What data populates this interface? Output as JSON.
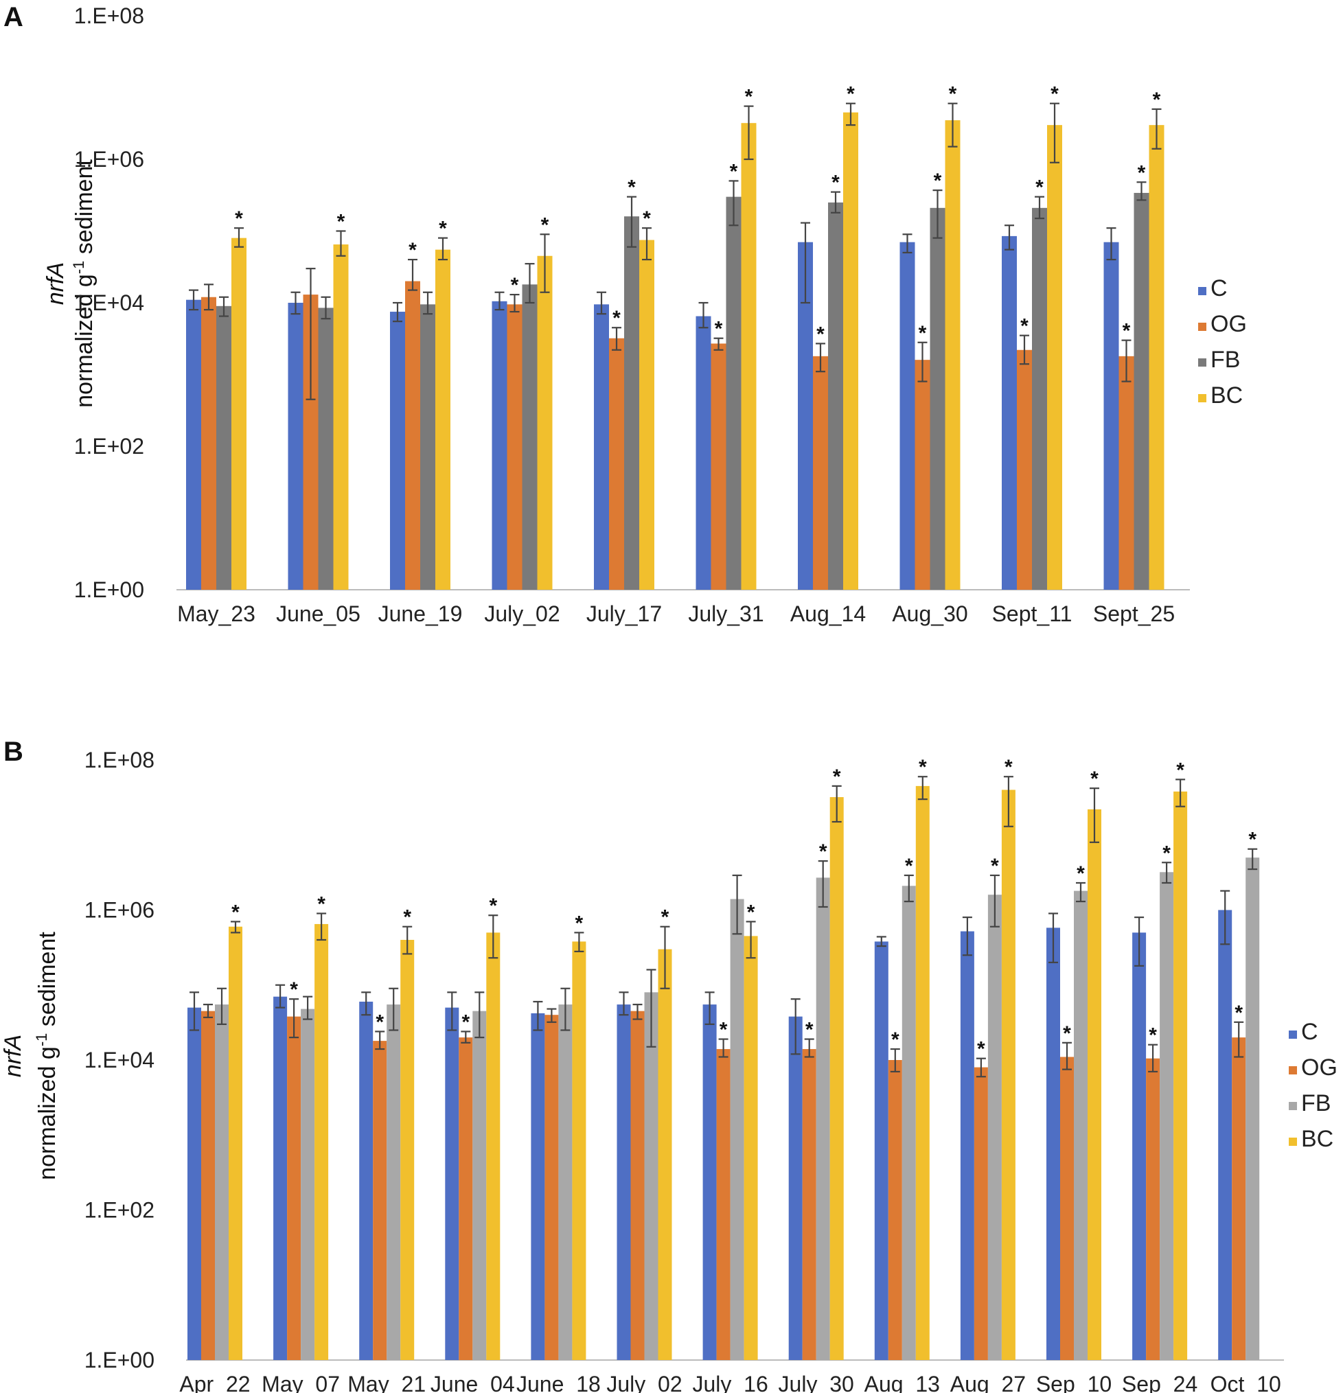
{
  "colors": {
    "C": "#4f6fc4",
    "OG": "#dd7a33",
    "FB_A": "#7a7a7a",
    "FB_B": "#a8a8a8",
    "BC": "#f1bf2d",
    "err": "#444444",
    "axis": "#bbbbbb"
  },
  "series_names": [
    "C",
    "OG",
    "FB",
    "BC"
  ],
  "chart_data": [
    {
      "type": "bar",
      "panel": "A",
      "scale": "log10",
      "ylim": [
        1,
        100000000
      ],
      "yticks": [
        "1.E+00",
        "1.E+02",
        "1.E+04",
        "1.E+06",
        "1.E+08"
      ],
      "ylabel_italic": "nrfA",
      "ylabel_pre": "normalized g",
      "ylabel_sup": "-1",
      "ylabel_post": " sediment",
      "categories": [
        "May_23",
        "June_05",
        "June_19",
        "July_02",
        "July_17",
        "July_31",
        "Aug_14",
        "Aug_30",
        "Sept_11",
        "Sept_25"
      ],
      "series": [
        {
          "name": "C",
          "values": [
            11000,
            10000,
            7500,
            10500,
            9500,
            6500,
            70000,
            70000,
            85000,
            70000
          ],
          "err_low": [
            8000,
            7000,
            5500,
            8000,
            7000,
            4500,
            10000,
            50000,
            55000,
            40000
          ],
          "err_high": [
            15000,
            14000,
            10000,
            14000,
            14000,
            10000,
            130000,
            90000,
            120000,
            110000
          ],
          "sig": [
            false,
            false,
            false,
            false,
            false,
            false,
            false,
            false,
            false,
            false
          ]
        },
        {
          "name": "OG",
          "values": [
            12000,
            13000,
            20000,
            9500,
            3200,
            2700,
            1800,
            1600,
            2200,
            1800
          ],
          "err_low": [
            8000,
            450,
            15000,
            7500,
            2200,
            2200,
            1100,
            800,
            1400,
            800
          ],
          "err_high": [
            18000,
            30000,
            40000,
            13000,
            4500,
            3200,
            2700,
            2800,
            3500,
            3000
          ],
          "sig": [
            false,
            false,
            true,
            true,
            true,
            true,
            true,
            true,
            true,
            true
          ]
        },
        {
          "name": "FB",
          "values": [
            9000,
            8500,
            9500,
            18000,
            160000,
            300000,
            250000,
            210000,
            210000,
            340000
          ],
          "err_low": [
            6500,
            6000,
            7000,
            10000,
            60000,
            120000,
            180000,
            80000,
            150000,
            270000
          ],
          "err_high": [
            12000,
            12000,
            14000,
            35000,
            300000,
            500000,
            350000,
            370000,
            300000,
            480000
          ],
          "sig": [
            false,
            false,
            false,
            false,
            true,
            true,
            true,
            true,
            true,
            true
          ]
        },
        {
          "name": "BC",
          "values": [
            80000,
            65000,
            55000,
            45000,
            75000,
            3200000,
            4500000,
            3500000,
            3000000,
            3000000
          ],
          "err_low": [
            60000,
            45000,
            40000,
            14000,
            40000,
            1000000,
            3000000,
            1500000,
            900000,
            1400000
          ],
          "err_high": [
            110000,
            100000,
            80000,
            90000,
            110000,
            5500000,
            6000000,
            6000000,
            6000000,
            5000000
          ],
          "sig": [
            true,
            true,
            true,
            true,
            true,
            true,
            true,
            true,
            true,
            true
          ]
        }
      ],
      "legend": [
        "C",
        "OG",
        "FB",
        "BC"
      ],
      "legend_position": "right"
    },
    {
      "type": "bar",
      "panel": "B",
      "scale": "log10",
      "ylim": [
        1,
        100000000
      ],
      "yticks": [
        "1.E+00",
        "1.E+02",
        "1.E+04",
        "1.E+06",
        "1.E+08"
      ],
      "ylabel_italic": "nrfA",
      "ylabel_pre": "normalized g",
      "ylabel_sup": "-1",
      "ylabel_post": " sediment",
      "categories": [
        "Apr_22",
        "May_07",
        "May_21",
        "June_04",
        "June_18",
        "July_02",
        "July_16",
        "July_30",
        "Aug_13",
        "Aug_27",
        "Sep_10",
        "Sep_24",
        "Oct_10"
      ],
      "series": [
        {
          "name": "C",
          "values": [
            50000,
            70000,
            60000,
            50000,
            42000,
            55000,
            55000,
            38000,
            380000,
            520000,
            580000,
            500000,
            1000000
          ],
          "err_low": [
            25000,
            50000,
            40000,
            25000,
            25000,
            40000,
            30000,
            12000,
            330000,
            250000,
            200000,
            180000,
            350000
          ],
          "err_high": [
            80000,
            100000,
            80000,
            80000,
            60000,
            80000,
            80000,
            65000,
            440000,
            800000,
            900000,
            800000,
            1800000
          ],
          "sig": [
            false,
            false,
            false,
            false,
            false,
            false,
            false,
            false,
            false,
            false,
            false,
            false,
            false
          ]
        },
        {
          "name": "OG",
          "values": [
            45000,
            38000,
            18000,
            20000,
            40000,
            45000,
            14000,
            14000,
            10000,
            8000,
            11000,
            10500,
            20000
          ],
          "err_low": [
            37000,
            20000,
            14000,
            17000,
            32000,
            35000,
            11000,
            11000,
            7000,
            6000,
            7500,
            7000,
            11000
          ],
          "err_high": [
            55000,
            65000,
            24000,
            24000,
            48000,
            55000,
            19000,
            19000,
            14000,
            10500,
            17000,
            16000,
            32000
          ],
          "sig": [
            false,
            true,
            true,
            true,
            false,
            false,
            true,
            true,
            true,
            true,
            true,
            true,
            true
          ]
        },
        {
          "name": "FB",
          "values": [
            55000,
            48000,
            55000,
            45000,
            55000,
            80000,
            1400000,
            2700000,
            2100000,
            1600000,
            1800000,
            3200000,
            5000000
          ],
          "err_low": [
            30000,
            35000,
            25000,
            20000,
            25000,
            15000,
            480000,
            1100000,
            1300000,
            600000,
            1300000,
            2300000,
            3500000
          ],
          "err_high": [
            90000,
            70000,
            90000,
            80000,
            90000,
            160000,
            2900000,
            4500000,
            2900000,
            2900000,
            2300000,
            4300000,
            6500000
          ],
          "sig": [
            false,
            false,
            false,
            false,
            false,
            false,
            false,
            true,
            true,
            true,
            true,
            true,
            true
          ]
        },
        {
          "name": "BC",
          "values": [
            600000,
            650000,
            400000,
            500000,
            380000,
            300000,
            450000,
            32000000,
            45000000,
            40000000,
            22000000,
            38000000,
            0
          ],
          "err_low": [
            500000,
            400000,
            260000,
            230000,
            280000,
            90000,
            230000,
            15000000,
            30000000,
            13000000,
            8000000,
            24000000,
            0
          ],
          "err_high": [
            700000,
            900000,
            600000,
            850000,
            500000,
            600000,
            700000,
            45000000,
            60000000,
            60000000,
            42000000,
            55000000,
            0
          ],
          "sig": [
            true,
            true,
            true,
            true,
            true,
            true,
            true,
            true,
            true,
            true,
            true,
            true,
            false
          ]
        }
      ],
      "legend": [
        "C",
        "OG",
        "FB",
        "BC"
      ],
      "legend_position": "right"
    }
  ]
}
